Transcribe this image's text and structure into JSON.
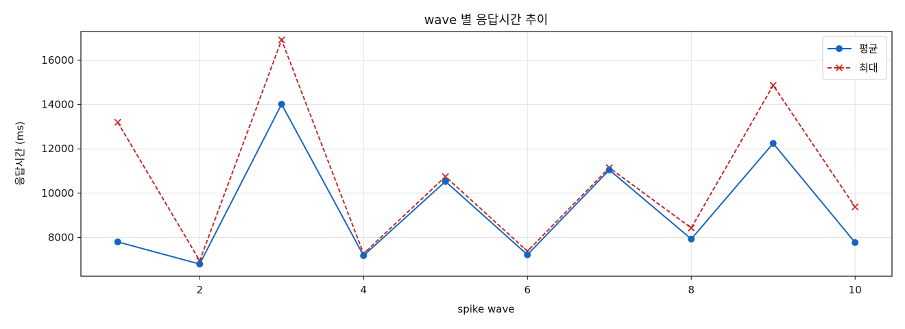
{
  "chart_data": {
    "type": "line",
    "title": "wave 별 응답시간 추이",
    "xlabel": "spike wave",
    "ylabel": "응답시간 (ms)",
    "x": [
      1,
      2,
      3,
      4,
      5,
      6,
      7,
      8,
      9,
      10
    ],
    "xticks": [
      2,
      4,
      6,
      8,
      10
    ],
    "yticks": [
      8000,
      10000,
      12000,
      14000,
      16000
    ],
    "xlim": [
      0.55,
      10.45
    ],
    "ylim": [
      6250,
      17300
    ],
    "grid": true,
    "legend_position": "top-right",
    "series": [
      {
        "name": "평균",
        "values": [
          7800,
          6800,
          14020,
          7180,
          10530,
          7220,
          11050,
          7930,
          12250,
          7770
        ],
        "color": "#1565c0",
        "line_style": "solid",
        "marker": "circle"
      },
      {
        "name": "최대",
        "values": [
          13200,
          6950,
          16920,
          7270,
          10750,
          7380,
          11150,
          8430,
          14870,
          9380
        ],
        "color": "#c62828",
        "line_style": "dashed",
        "marker": "x"
      }
    ]
  }
}
